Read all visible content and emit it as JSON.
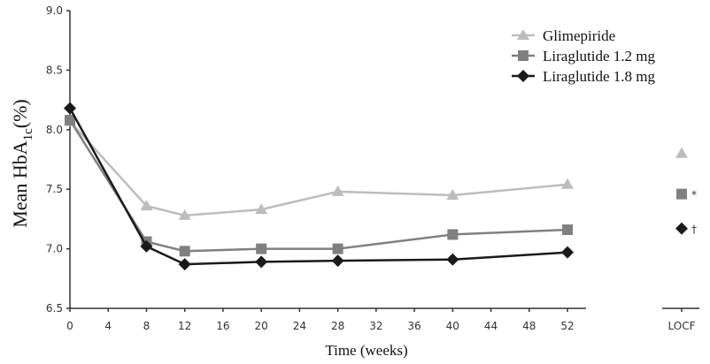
{
  "chart_data": {
    "type": "line",
    "title": "",
    "xlabel": "Time (weeks)",
    "ylabel_main": "Mean HbA",
    "ylabel_sub": "1c",
    "ylabel_unit": "(%)",
    "xlim": [
      0,
      54
    ],
    "ylim": [
      6.5,
      9.0
    ],
    "x_ticks": [
      0,
      4,
      8,
      12,
      16,
      20,
      24,
      28,
      32,
      36,
      40,
      44,
      48,
      52
    ],
    "y_ticks": [
      "6.5",
      "7.0",
      "7.5",
      "8.0",
      "8.5",
      "9.0"
    ],
    "x": [
      0,
      8,
      12,
      20,
      28,
      40,
      52
    ],
    "locf_label": "LOCF",
    "legend_position": "top-right",
    "grid": false,
    "series": [
      {
        "name": "Glimepiride",
        "marker": "triangle",
        "color": "#bdbdbd",
        "values": [
          8.07,
          7.36,
          7.28,
          7.33,
          7.48,
          7.45,
          7.54
        ],
        "locf": 7.8,
        "locf_note": ""
      },
      {
        "name": "Liraglutide 1.2 mg",
        "marker": "square",
        "color": "#808080",
        "values": [
          8.08,
          7.06,
          6.98,
          7.0,
          7.0,
          7.12,
          7.16
        ],
        "locf": 7.46,
        "locf_note": "*"
      },
      {
        "name": "Liraglutide 1.8 mg",
        "marker": "diamond",
        "color": "#1a1a1a",
        "values": [
          8.18,
          7.02,
          6.87,
          6.89,
          6.9,
          6.91,
          6.97
        ],
        "locf": 7.17,
        "locf_note": "†"
      }
    ]
  }
}
